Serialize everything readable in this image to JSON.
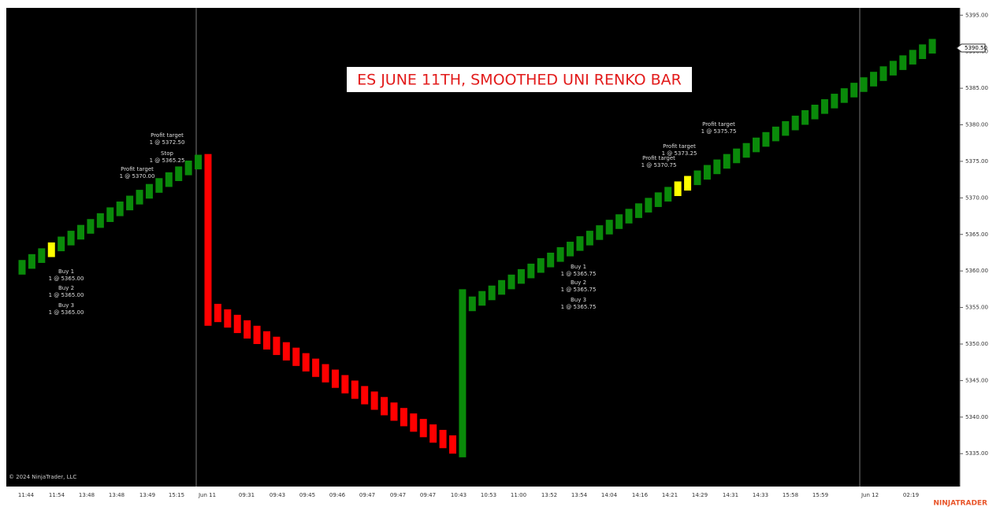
{
  "chart_data": {
    "type": "renko",
    "title": "ES JUNE 11TH, SMOOTHED UNI RENKO BAR",
    "copyright": "© 2024 NinjaTrader, LLC",
    "brand": "NINJATRADER",
    "up_color": "#0a8a0a",
    "down_color": "#ff0000",
    "highlight_color": "#ffff00",
    "highlighted_bricks": [
      3,
      67,
      68
    ],
    "bricks": [
      [
        5359.5,
        5361.5
      ],
      [
        5360.3,
        5362.3
      ],
      [
        5361.1,
        5363.1
      ],
      [
        5361.9,
        5363.9
      ],
      [
        5362.7,
        5364.7
      ],
      [
        5363.5,
        5365.5
      ],
      [
        5364.3,
        5366.3
      ],
      [
        5365.1,
        5367.1
      ],
      [
        5365.9,
        5367.9
      ],
      [
        5366.7,
        5368.7
      ],
      [
        5367.5,
        5369.5
      ],
      [
        5368.3,
        5370.3
      ],
      [
        5369.1,
        5371.1
      ],
      [
        5369.9,
        5371.9
      ],
      [
        5370.7,
        5372.7
      ],
      [
        5371.5,
        5373.5
      ],
      [
        5372.3,
        5374.3
      ],
      [
        5373.1,
        5375.1
      ],
      [
        5373.9,
        5375.9
      ],
      [
        5376,
        5352.5
      ],
      [
        5355.5,
        5353
      ],
      [
        5354.75,
        5352.25
      ],
      [
        5354,
        5351.5
      ],
      [
        5353.25,
        5350.75
      ],
      [
        5352.5,
        5350
      ],
      [
        5351.75,
        5349.25
      ],
      [
        5351,
        5348.5
      ],
      [
        5350.25,
        5347.75
      ],
      [
        5349.5,
        5347
      ],
      [
        5348.75,
        5346.25
      ],
      [
        5348,
        5345.5
      ],
      [
        5347.25,
        5344.75
      ],
      [
        5346.5,
        5344
      ],
      [
        5345.75,
        5343.25
      ],
      [
        5345,
        5342.5
      ],
      [
        5344.25,
        5341.75
      ],
      [
        5343.5,
        5341
      ],
      [
        5342.75,
        5340.25
      ],
      [
        5342,
        5339.5
      ],
      [
        5341.25,
        5338.75
      ],
      [
        5340.5,
        5338
      ],
      [
        5339.75,
        5337.25
      ],
      [
        5339,
        5336.5
      ],
      [
        5338.25,
        5335.75
      ],
      [
        5337.5,
        5335
      ],
      [
        5334.5,
        5357.5
      ],
      [
        5354.5,
        5356.5
      ],
      [
        5355.25,
        5357.25
      ],
      [
        5356,
        5358
      ],
      [
        5356.75,
        5358.75
      ],
      [
        5357.5,
        5359.5
      ],
      [
        5358.25,
        5360.25
      ],
      [
        5359,
        5361
      ],
      [
        5359.75,
        5361.75
      ],
      [
        5360.5,
        5362.5
      ],
      [
        5361.25,
        5363.25
      ],
      [
        5362,
        5364
      ],
      [
        5362.75,
        5364.75
      ],
      [
        5363.5,
        5365.5
      ],
      [
        5364.25,
        5366.25
      ],
      [
        5365,
        5367
      ],
      [
        5365.75,
        5367.75
      ],
      [
        5366.5,
        5368.5
      ],
      [
        5367.25,
        5369.25
      ],
      [
        5368,
        5370
      ],
      [
        5368.75,
        5370.75
      ],
      [
        5369.5,
        5371.5
      ],
      [
        5370.25,
        5372.25
      ],
      [
        5371,
        5373
      ],
      [
        5371.75,
        5373.75
      ],
      [
        5372.5,
        5374.5
      ],
      [
        5373.25,
        5375.25
      ],
      [
        5374,
        5376
      ],
      [
        5374.75,
        5376.75
      ],
      [
        5375.5,
        5377.5
      ],
      [
        5376.25,
        5378.25
      ],
      [
        5377,
        5379
      ],
      [
        5377.75,
        5379.75
      ],
      [
        5378.5,
        5380.5
      ],
      [
        5379.25,
        5381.25
      ],
      [
        5380,
        5382
      ],
      [
        5380.75,
        5382.75
      ],
      [
        5381.5,
        5383.5
      ],
      [
        5382.25,
        5384.25
      ],
      [
        5383,
        5385
      ],
      [
        5383.75,
        5385.75
      ],
      [
        5384.5,
        5386.5
      ],
      [
        5385.25,
        5387.25
      ],
      [
        5386,
        5388
      ],
      [
        5386.75,
        5388.75
      ],
      [
        5387.5,
        5389.5
      ],
      [
        5388.25,
        5390.25
      ],
      [
        5389,
        5391
      ],
      [
        5389.75,
        5391.75
      ]
    ],
    "x_labels": [
      "11:44",
      "11:54",
      "13:48",
      "13:48",
      "13:49",
      "15:15",
      "Jun 11",
      "09:31",
      "09:43",
      "09:45",
      "09:46",
      "09:47",
      "09:47",
      "09:47",
      "10:43",
      "10:53",
      "11:00",
      "13:52",
      "13:54",
      "14:04",
      "14:16",
      "14:21",
      "14:29",
      "14:31",
      "14:33",
      "15:58",
      "15:59",
      "Jun 12",
      "02:19"
    ],
    "ylim": [
      5330.5,
      5396
    ],
    "yticks": [
      {
        "value": 5335,
        "label": "5335.00"
      },
      {
        "value": 5340,
        "label": "5340.00"
      },
      {
        "value": 5345,
        "label": "5345.00"
      },
      {
        "value": 5350,
        "label": "5350.00"
      },
      {
        "value": 5355,
        "label": "5355.00"
      },
      {
        "value": 5360,
        "label": "5360.00"
      },
      {
        "value": 5365,
        "label": "5365.00"
      },
      {
        "value": 5370,
        "label": "5370.00"
      },
      {
        "value": 5375,
        "label": "5375.00"
      },
      {
        "value": 5380,
        "label": "5380.00"
      },
      {
        "value": 5385,
        "label": "5385.00"
      },
      {
        "value": 5390,
        "label": "5390.00"
      },
      {
        "value": 5395,
        "label": "5395.00"
      }
    ],
    "last_price": {
      "value": 5390.5,
      "label": "5390.50"
    },
    "annotations": [
      [
        "Profit target",
        "1 @ 5372.50"
      ],
      [
        "Stop",
        "1 @ 5365.25"
      ],
      [
        "Profit target",
        "1 @ 5370.00"
      ],
      [
        "Buy 1",
        "1 @ 5365.00"
      ],
      [
        "Buy 2",
        "1 @ 5365.00"
      ],
      [
        "Buy 3",
        "1 @ 5365.00"
      ],
      [
        "Profit target",
        "1 @ 5375.75"
      ],
      [
        "Profit target",
        "1 @ 5373.25"
      ],
      [
        "Profit target",
        "1 @ 5370.75"
      ],
      [
        "Buy 1",
        "1 @ 5365.75"
      ],
      [
        "Buy 2",
        "1 @ 5365.75"
      ],
      [
        "Buy 3",
        "1 @ 5365.75"
      ]
    ]
  }
}
